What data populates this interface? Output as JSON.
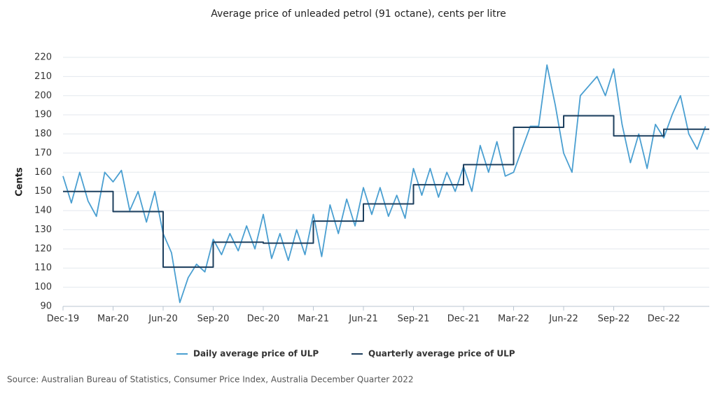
{
  "chart_data": {
    "type": "line",
    "title": "Average price of unleaded petrol (91 octane), cents per litre",
    "y_label": "Cents",
    "source": "Source: Australian Bureau of Statistics, Consumer Price Index, Australia December Quarter 2022",
    "categories": [
      "Dec-19",
      null,
      null,
      null,
      null,
      null,
      "Mar-20",
      null,
      null,
      null,
      null,
      null,
      "Jun-20",
      null,
      null,
      null,
      null,
      null,
      "Sep-20",
      null,
      null,
      null,
      null,
      null,
      "Dec-20",
      null,
      null,
      null,
      null,
      null,
      "Mar-21",
      null,
      null,
      null,
      null,
      null,
      "Jun-21",
      null,
      null,
      null,
      null,
      null,
      "Sep-21",
      null,
      null,
      null,
      null,
      null,
      "Dec-21",
      null,
      null,
      null,
      null,
      null,
      "Mar-22",
      null,
      null,
      null,
      null,
      null,
      "Jun-22",
      null,
      null,
      null,
      null,
      null,
      "Sep-22",
      null,
      null,
      null,
      null,
      null,
      "Dec-22",
      null,
      null,
      null,
      null,
      null
    ],
    "series": [
      {
        "name": "Daily average price of ULP",
        "color": "#4a9fd1",
        "step": false,
        "values": [
          158,
          144,
          160,
          145,
          137,
          160,
          155,
          161,
          140,
          150,
          134,
          150,
          128,
          118,
          92,
          105,
          112,
          108,
          125,
          117,
          128,
          119,
          132,
          120,
          138,
          115,
          128,
          114,
          130,
          117,
          138,
          116,
          143,
          128,
          146,
          132,
          152,
          138,
          152,
          137,
          148,
          136,
          162,
          148,
          162,
          147,
          160,
          150,
          163,
          150,
          174,
          160,
          176,
          158,
          160,
          172,
          184,
          184,
          216,
          195,
          170,
          160,
          200,
          205,
          210,
          200,
          214,
          185,
          165,
          180,
          162,
          185,
          178,
          190,
          200,
          180,
          172,
          184
        ]
      },
      {
        "name": "Quarterly average price of ULP",
        "color": "#1d3f5e",
        "step": true,
        "values": [
          150,
          150,
          150,
          150,
          150,
          150,
          139.5,
          139.5,
          139.5,
          139.5,
          139.5,
          139.5,
          110.5,
          110.5,
          110.5,
          110.5,
          110.5,
          110.5,
          123.5,
          123.5,
          123.5,
          123.5,
          123.5,
          123.5,
          123,
          123,
          123,
          123,
          123,
          123,
          134.5,
          134.5,
          134.5,
          134.5,
          134.5,
          134.5,
          143.5,
          143.5,
          143.5,
          143.5,
          143.5,
          143.5,
          153.5,
          153.5,
          153.5,
          153.5,
          153.5,
          153.5,
          164,
          164,
          164,
          164,
          164,
          164,
          183.5,
          183.5,
          183.5,
          183.5,
          183.5,
          183.5,
          189.5,
          189.5,
          189.5,
          189.5,
          189.5,
          189.5,
          179,
          179,
          179,
          179,
          179,
          179,
          182.5,
          182.5,
          182.5,
          182.5,
          182.5,
          182.5
        ]
      }
    ],
    "ylim": [
      90,
      220
    ],
    "yticks": [
      90,
      100,
      110,
      120,
      130,
      140,
      150,
      160,
      170,
      180,
      190,
      200,
      210,
      220
    ],
    "grid": true
  }
}
